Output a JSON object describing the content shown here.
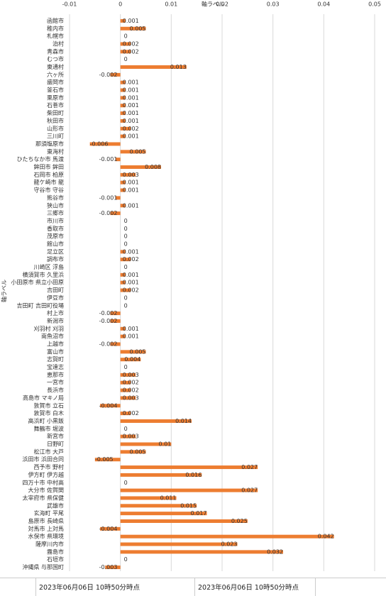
{
  "chart_data": {
    "type": "bar",
    "orientation": "horizontal",
    "x_label": "軸ラベル",
    "y_label": "軸ラベル",
    "color": "#ed7d31",
    "grid": true,
    "categories": [
      "函館市",
      "稚内市",
      "札幌市",
      "泊村",
      "青森市",
      "むつ市",
      "東通村",
      "六ヶ所",
      "盛岡市",
      "釜石市",
      "栗原市",
      "石巻市",
      "柴田町",
      "秋田市",
      "山形市",
      "三川町",
      "那須塩原市",
      "東海村",
      "ひたちなか市 馬渡",
      "鉾田市 鉾田",
      "石岡市 柏原",
      "龍ケ崎市 龍",
      "守谷市 守谷",
      "熊谷市",
      "狭山市",
      "三郷市",
      "市川市",
      "香取市",
      "茂原市",
      "館山市",
      "足立区",
      "調布市",
      "川崎区 浮島",
      "横須賀市 久里浜",
      "小田原市 県立小田原",
      "吉田町",
      "伊豆市",
      "吉田町 吉田町役場",
      "村上市",
      "新潟市",
      "刈羽村 刈羽",
      "南魚沼市",
      "上越市",
      "富山市",
      "志賀町",
      "宝達志",
      "恵那市",
      "一宮市",
      "長浜市",
      "高島市 マキノ局",
      "敦賀市 立石",
      "敦賀市 白木",
      "高浜町 小黒飯",
      "舞鶴市 堀波",
      "新宮市",
      "日野町",
      "松江市 大芦",
      "浜田市 浜田合同",
      "西予市 野村",
      "伊方町 伊方越",
      "四万十市 中村高",
      "大分市 佐賀関",
      "太宰府市 県保健",
      "武雄市",
      "玄海町 平尾",
      "島原市 長崎県",
      "対馬市 上対馬",
      "水俣市 県環境",
      "薩摩川内市",
      "霧島市",
      "石垣市",
      "沖縄県 与那国町"
    ],
    "values": [
      0.001,
      0.005,
      0,
      0.002,
      0.002,
      0,
      0.013,
      -0.002,
      0.001,
      0.001,
      0.001,
      0.001,
      0.001,
      0.001,
      0.002,
      0.001,
      -0.006,
      0.005,
      -0.001,
      0.008,
      0.003,
      0.001,
      0.001,
      -0.001,
      0.001,
      -0.002,
      0,
      0,
      0,
      0,
      0.001,
      0.002,
      0,
      0.001,
      0.001,
      0.002,
      0,
      0,
      -0.002,
      -0.002,
      0.001,
      0.001,
      -0.002,
      0.005,
      0.004,
      0,
      0.003,
      0.002,
      0.002,
      0.003,
      -0.004,
      0.002,
      0.014,
      0,
      0.003,
      0.01,
      0.005,
      -0.005,
      0.027,
      0.016,
      0,
      0.027,
      0.011,
      0.015,
      0.017,
      0.025,
      -0.004,
      0.042,
      0.023,
      0.032,
      0,
      -0.003
    ],
    "xlim": [
      -0.01,
      0.05
    ],
    "xticks": [
      -0.01,
      0,
      0.01,
      0.02,
      0.03,
      0.04,
      0.05
    ]
  },
  "footer": [
    "2023年06月06日 10時50分時点",
    "2023年06月06日 10時50分時点"
  ]
}
